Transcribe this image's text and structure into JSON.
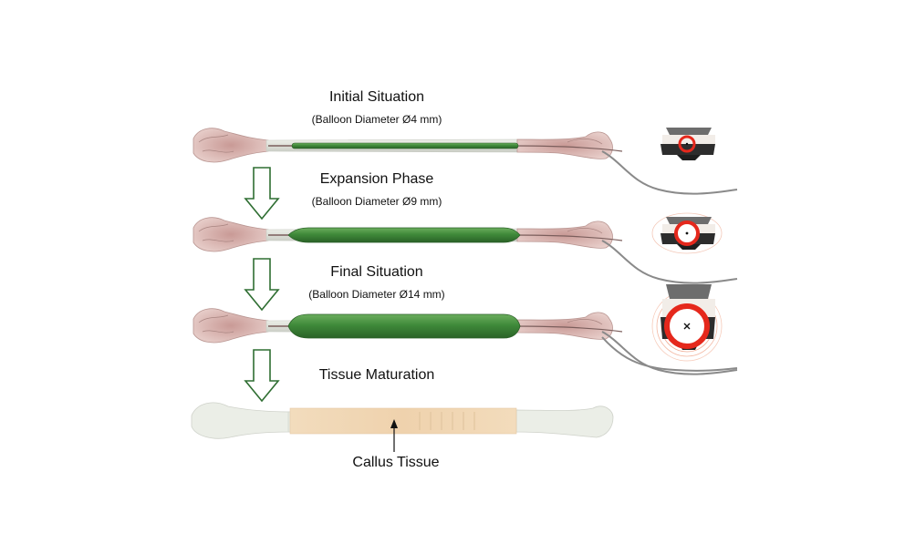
{
  "stages": [
    {
      "title": "Initial Situation",
      "subtitle": "(Balloon Diameter Ø4 mm)"
    },
    {
      "title": "Expansion Phase",
      "subtitle": "(Balloon Diameter Ø9 mm)"
    },
    {
      "title": "Final Situation",
      "subtitle": "(Balloon Diameter Ø14 mm)"
    },
    {
      "title": "Tissue Maturation"
    }
  ],
  "callout": {
    "label": "Callus Tissue"
  },
  "balloon_diameters_mm": [
    4,
    9,
    14
  ],
  "colors": {
    "bone": "#e3e6df",
    "bone_end": "#d8b0ac",
    "balloon": "#3f8a3a",
    "arrow": "#2f6e32",
    "ring": "#e5281c",
    "callus": "#f1d7b4",
    "cross_section_dark": "#555555"
  }
}
